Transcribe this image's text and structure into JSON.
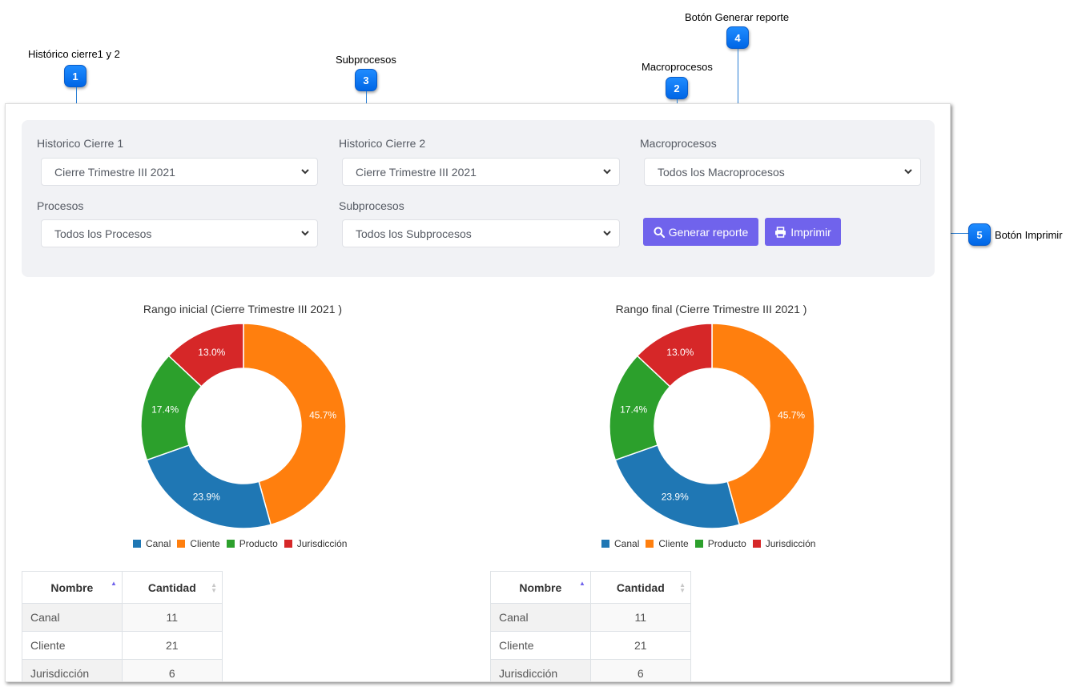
{
  "annotations": [
    {
      "num": "1",
      "label": "Histórico cierre1 y 2"
    },
    {
      "num": "2",
      "label": "Macroprocesos"
    },
    {
      "num": "3",
      "label": "Subprocesos"
    },
    {
      "num": "4",
      "label": "Botón  Generar reporte"
    },
    {
      "num": "5",
      "label": "Botón  Imprimir"
    }
  ],
  "filters": {
    "historico1": {
      "label": "Historico Cierre 1",
      "value": "Cierre Trimestre III 2021"
    },
    "historico2": {
      "label": "Historico Cierre 2",
      "value": "Cierre Trimestre III 2021"
    },
    "macro": {
      "label": "Macroprocesos",
      "value": "Todos los Macroprocesos"
    },
    "procesos": {
      "label": "Procesos",
      "value": "Todos los Procesos"
    },
    "subprocesos": {
      "label": "Subprocesos",
      "value": "Todos los Subprocesos"
    }
  },
  "buttons": {
    "generate": "Generar reporte",
    "print": "Imprimir"
  },
  "colors": {
    "accent": "#7063ec",
    "canal": "#1f77b4",
    "cliente": "#ff7f0e",
    "producto": "#2ca02c",
    "jurisdiccion": "#d62728"
  },
  "chart_data": [
    {
      "type": "pie",
      "title": "Rango inicial (Cierre Trimestre III 2021 )",
      "categories": [
        "Canal",
        "Cliente",
        "Producto",
        "Jurisdicción"
      ],
      "values": [
        23.9,
        45.7,
        17.4,
        13.0
      ],
      "labels": [
        "23.9%",
        "45.7%",
        "17.4%",
        "13.0%"
      ],
      "legend": "bottom"
    },
    {
      "type": "pie",
      "title": "Rango final (Cierre Trimestre III 2021 )",
      "categories": [
        "Canal",
        "Cliente",
        "Producto",
        "Jurisdicción"
      ],
      "values": [
        23.9,
        45.7,
        17.4,
        13.0
      ],
      "labels": [
        "23.9%",
        "45.7%",
        "17.4%",
        "13.0%"
      ],
      "legend": "bottom"
    }
  ],
  "tables": [
    {
      "headers": [
        "Nombre",
        "Cantidad"
      ],
      "rows": [
        [
          "Canal",
          "11"
        ],
        [
          "Cliente",
          "21"
        ],
        [
          "Jurisdicción",
          "6"
        ]
      ]
    },
    {
      "headers": [
        "Nombre",
        "Cantidad"
      ],
      "rows": [
        [
          "Canal",
          "11"
        ],
        [
          "Cliente",
          "21"
        ],
        [
          "Jurisdicción",
          "6"
        ]
      ]
    }
  ]
}
